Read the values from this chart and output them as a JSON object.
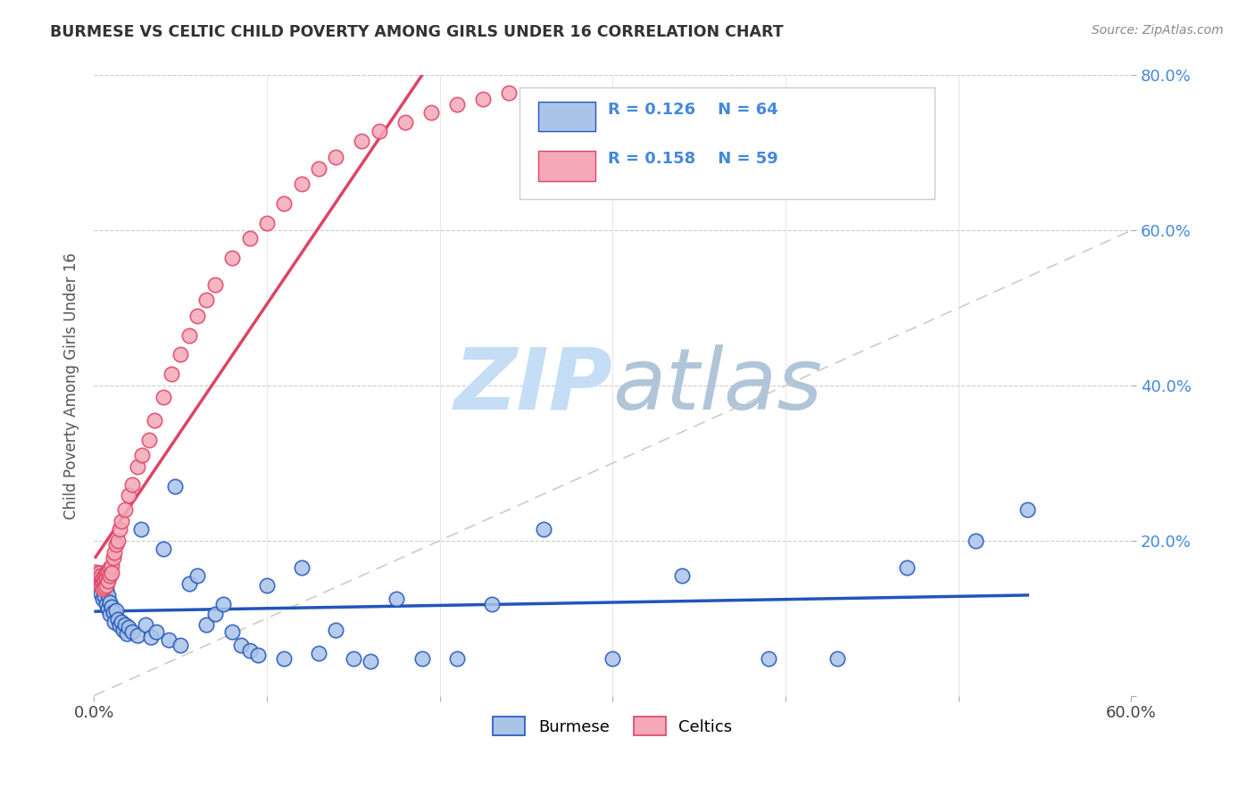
{
  "title": "BURMESE VS CELTIC CHILD POVERTY AMONG GIRLS UNDER 16 CORRELATION CHART",
  "source": "Source: ZipAtlas.com",
  "ylabel": "Child Poverty Among Girls Under 16",
  "burmese_color": "#aac4e8",
  "celtics_color": "#f4a8b8",
  "burmese_line_color": "#2255bb",
  "celtics_line_color": "#dd4466",
  "diagonal_color": "#cccccc",
  "watermark_zip_color": "#c8dff5",
  "watermark_atlas_color": "#b8c8d8",
  "R_burmese": 0.126,
  "N_burmese": 64,
  "R_celtics": 0.158,
  "N_celtics": 59,
  "xlim": [
    0.0,
    0.6
  ],
  "ylim": [
    0.0,
    0.8
  ],
  "burmese_x": [
    0.001,
    0.002,
    0.003,
    0.004,
    0.004,
    0.005,
    0.005,
    0.006,
    0.006,
    0.007,
    0.007,
    0.008,
    0.008,
    0.009,
    0.009,
    0.01,
    0.011,
    0.012,
    0.013,
    0.014,
    0.015,
    0.016,
    0.017,
    0.018,
    0.019,
    0.02,
    0.022,
    0.025,
    0.027,
    0.03,
    0.033,
    0.036,
    0.04,
    0.043,
    0.047,
    0.05,
    0.055,
    0.06,
    0.065,
    0.07,
    0.075,
    0.08,
    0.085,
    0.09,
    0.095,
    0.1,
    0.11,
    0.12,
    0.13,
    0.14,
    0.15,
    0.16,
    0.175,
    0.19,
    0.21,
    0.23,
    0.26,
    0.3,
    0.34,
    0.39,
    0.43,
    0.47,
    0.51,
    0.54
  ],
  "burmese_y": [
    0.155,
    0.148,
    0.14,
    0.158,
    0.132,
    0.145,
    0.125,
    0.15,
    0.128,
    0.138,
    0.118,
    0.13,
    0.112,
    0.12,
    0.105,
    0.115,
    0.108,
    0.095,
    0.11,
    0.098,
    0.09,
    0.095,
    0.085,
    0.092,
    0.08,
    0.088,
    0.082,
    0.078,
    0.215,
    0.092,
    0.075,
    0.082,
    0.19,
    0.072,
    0.27,
    0.065,
    0.145,
    0.155,
    0.092,
    0.105,
    0.118,
    0.082,
    0.065,
    0.058,
    0.052,
    0.142,
    0.048,
    0.165,
    0.055,
    0.085,
    0.048,
    0.045,
    0.125,
    0.048,
    0.048,
    0.118,
    0.215,
    0.048,
    0.155,
    0.048,
    0.048,
    0.165,
    0.2,
    0.24
  ],
  "celtics_x": [
    0.001,
    0.001,
    0.002,
    0.002,
    0.003,
    0.003,
    0.003,
    0.004,
    0.004,
    0.004,
    0.005,
    0.005,
    0.005,
    0.006,
    0.006,
    0.006,
    0.007,
    0.007,
    0.007,
    0.008,
    0.008,
    0.009,
    0.009,
    0.01,
    0.01,
    0.011,
    0.012,
    0.013,
    0.014,
    0.015,
    0.016,
    0.018,
    0.02,
    0.022,
    0.025,
    0.028,
    0.032,
    0.035,
    0.04,
    0.045,
    0.05,
    0.055,
    0.06,
    0.065,
    0.07,
    0.08,
    0.09,
    0.1,
    0.11,
    0.12,
    0.13,
    0.14,
    0.155,
    0.165,
    0.18,
    0.195,
    0.21,
    0.225,
    0.24
  ],
  "celtics_y": [
    0.155,
    0.16,
    0.148,
    0.155,
    0.158,
    0.15,
    0.145,
    0.148,
    0.155,
    0.142,
    0.152,
    0.145,
    0.138,
    0.155,
    0.148,
    0.14,
    0.158,
    0.152,
    0.142,
    0.16,
    0.148,
    0.165,
    0.155,
    0.168,
    0.158,
    0.178,
    0.185,
    0.195,
    0.2,
    0.215,
    0.225,
    0.24,
    0.258,
    0.272,
    0.295,
    0.31,
    0.33,
    0.355,
    0.385,
    0.415,
    0.44,
    0.465,
    0.49,
    0.51,
    0.53,
    0.565,
    0.59,
    0.61,
    0.635,
    0.66,
    0.68,
    0.695,
    0.715,
    0.728,
    0.74,
    0.752,
    0.762,
    0.77,
    0.778
  ]
}
